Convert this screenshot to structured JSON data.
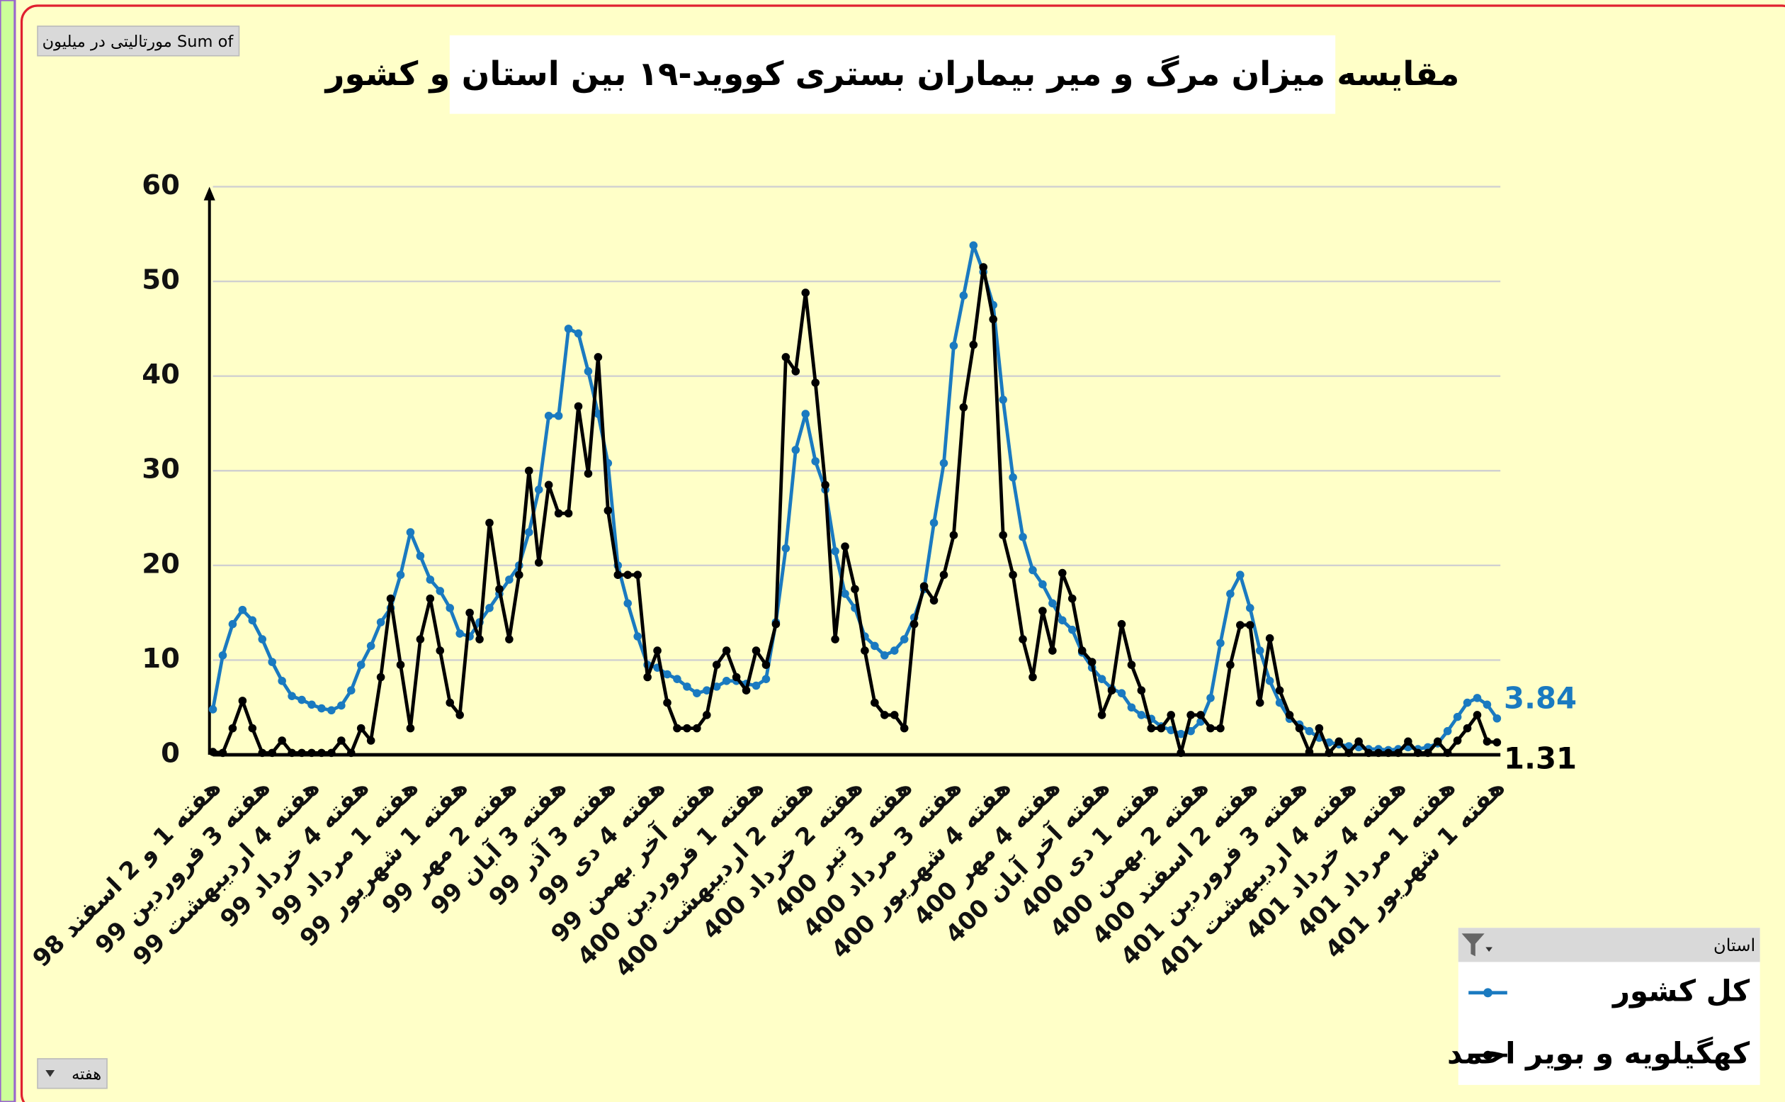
{
  "chart_data": {
    "type": "line",
    "title": "مقایسه میزان مرگ و میر بیماران بستری کووید-۱۹ بین استان و کشور",
    "value_field": "Sum of مورتالیتی در میلیون",
    "axis_field": "هفته",
    "legend_title": "استان",
    "legend": "bottom-right",
    "grid": true,
    "ylim": [
      0,
      60
    ],
    "yticks": [
      0,
      10,
      20,
      30,
      40,
      50,
      60
    ],
    "categories": [
      "هفته 1 و 2 اسفند 98",
      null,
      null,
      null,
      null,
      "هفته 3 فروردین 99",
      null,
      null,
      null,
      null,
      "هفته 4 اردیبهشت 99",
      null,
      null,
      null,
      null,
      "هفته 4 خرداد 99",
      null,
      null,
      null,
      null,
      "هفته 1 مرداد 99",
      null,
      null,
      null,
      null,
      "هفته 1 شهریور 99",
      null,
      null,
      null,
      null,
      "هفته 2 مهر 99",
      null,
      null,
      null,
      null,
      "هفته 3 آبان 99",
      null,
      null,
      null,
      null,
      "هفته 3 آذر 99",
      null,
      null,
      null,
      null,
      "هفته 4 دی 99",
      null,
      null,
      null,
      null,
      "هفته آخر بهمن 99",
      null,
      null,
      null,
      null,
      "هفته 1 فروردین 400",
      null,
      null,
      null,
      null,
      "هفته 2 اردیبهشت 400",
      null,
      null,
      null,
      null,
      "هفته 2 خرداد 400",
      null,
      null,
      null,
      null,
      "هفته 3 تیر 400",
      null,
      null,
      null,
      null,
      "هفته 3 مرداد 400",
      null,
      null,
      null,
      null,
      "هفته 4 شهریور 400",
      null,
      null,
      null,
      null,
      "هفته 4 مهر 400",
      null,
      null,
      null,
      null,
      "هفته آخر آبان 400",
      null,
      null,
      null,
      null,
      "هفته 1 دی 400",
      null,
      null,
      null,
      null,
      "هفته 2 بهمن 400",
      null,
      null,
      null,
      null,
      "هفته 2 اسفند 400",
      null,
      null,
      null,
      null,
      "هفته 3 فروردین 401",
      null,
      null,
      null,
      null,
      "هفته 4 اردیبهشت 401",
      null,
      null,
      null,
      null,
      "هفته 4 خرداد 401",
      null,
      null,
      null,
      null,
      "هفته 1 مرداد 401",
      null,
      null,
      null,
      null,
      "هفته 1 شهریور 401"
    ],
    "series": [
      {
        "name": "کل کشور",
        "color": "#1a7ac0",
        "values": [
          4.8,
          10.5,
          13.8,
          15.3,
          14.2,
          12.2,
          9.8,
          7.8,
          6.2,
          5.8,
          5.3,
          4.9,
          4.7,
          5.2,
          6.8,
          9.5,
          11.5,
          14,
          15.5,
          19,
          23.5,
          21,
          18.5,
          17.3,
          15.5,
          12.8,
          12.5,
          14,
          15.5,
          17,
          18.5,
          20,
          23.5,
          28,
          35.8,
          35.8,
          45,
          44.5,
          40.5,
          36,
          30.8,
          20,
          16,
          12.5,
          9.5,
          9.2,
          8.5,
          8,
          7.2,
          6.5,
          6.8,
          7.2,
          7.8,
          7.8,
          7.5,
          7.3,
          8,
          14,
          21.8,
          32.2,
          36,
          31,
          28,
          21.5,
          17,
          15.5,
          12.5,
          11.5,
          10.5,
          11,
          12.2,
          14.5,
          17.5,
          24.5,
          30.8,
          43.2,
          48.5,
          53.8,
          51,
          47.5,
          37.5,
          29.3,
          23,
          19.5,
          18,
          16,
          14.2,
          13.2,
          10.8,
          9.2,
          8,
          7,
          6.5,
          5,
          4.2,
          3.8,
          3,
          2.6,
          2.2,
          2.5,
          3.5,
          6,
          11.8,
          17,
          19,
          15.5,
          11,
          7.8,
          5.5,
          3.8,
          3.2,
          2.5,
          1.8,
          1.3,
          1.1,
          0.9,
          0.8,
          0.6,
          0.6,
          0.5,
          0.6,
          0.8,
          0.6,
          0.8,
          1.2,
          2.5,
          4,
          5.5,
          6,
          5.3,
          3.84
        ]
      },
      {
        "name": "کهگیلویه و بویر احمد",
        "color": "#000000",
        "values": [
          0.3,
          0.2,
          2.8,
          5.7,
          2.8,
          0.2,
          0.2,
          1.5,
          0.2,
          0.2,
          0.2,
          0.2,
          0.2,
          1.5,
          0.2,
          2.8,
          1.5,
          8.2,
          16.5,
          9.5,
          2.8,
          12.2,
          16.5,
          11,
          5.5,
          4.2,
          15,
          12.2,
          24.5,
          17.5,
          12.2,
          19,
          30,
          20.3,
          28.5,
          25.5,
          25.5,
          36.8,
          29.7,
          42,
          25.8,
          19,
          19,
          19,
          8.2,
          11,
          5.5,
          2.8,
          2.8,
          2.8,
          4.2,
          9.5,
          11,
          8.2,
          6.8,
          11,
          9.5,
          13.8,
          42,
          40.5,
          48.8,
          39.3,
          28.5,
          12.2,
          22,
          17.5,
          11,
          5.5,
          4.2,
          4.2,
          2.8,
          13.8,
          17.8,
          16.3,
          19,
          23.2,
          36.7,
          43.3,
          51.5,
          46,
          23.2,
          19,
          12.2,
          8.2,
          15.2,
          11,
          19.2,
          16.5,
          11,
          9.8,
          4.2,
          6.8,
          13.8,
          9.5,
          6.8,
          2.8,
          2.8,
          4.2,
          0.2,
          4.2,
          4.2,
          2.8,
          2.8,
          9.5,
          13.7,
          13.7,
          5.5,
          12.3,
          6.8,
          4.2,
          2.8,
          0.3,
          2.8,
          0.2,
          1.4,
          0.2,
          1.4,
          0.2,
          0.2,
          0.2,
          0.2,
          1.4,
          0.2,
          0.2,
          1.4,
          0.2,
          1.5,
          2.8,
          4.2,
          1.4,
          1.31
        ]
      }
    ]
  }
}
